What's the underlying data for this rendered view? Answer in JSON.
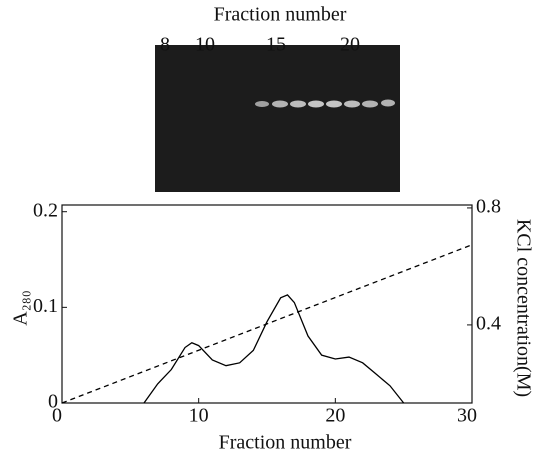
{
  "chart_data": {
    "type": "line",
    "gel_title": "Fraction number",
    "gel_lanes": [
      "8",
      "10",
      "15",
      "20"
    ],
    "xlabel": "Fraction number",
    "ylabel": "A₂₈₀",
    "y2label": "KCl concentration(M)",
    "xlim": [
      0,
      30
    ],
    "xticks": [
      0,
      10,
      20,
      30
    ],
    "ylim": [
      0,
      0.207
    ],
    "yticks": [
      0,
      0.1,
      0.2
    ],
    "y2lim": [
      0.133,
      0.81
    ],
    "y2ticks": [
      0.4,
      0.8
    ],
    "series": [
      {
        "color": "#000000",
        "style": "solid",
        "x": [
          6,
          7,
          8,
          9,
          9.5,
          10,
          11,
          12,
          13,
          14,
          15,
          16,
          16.5,
          17,
          18,
          19,
          20,
          21,
          22,
          23,
          24,
          25
        ],
        "values": [
          0,
          0.02,
          0.035,
          0.058,
          0.063,
          0.06,
          0.045,
          0.039,
          0.042,
          0.055,
          0.085,
          0.11,
          0.113,
          0.105,
          0.07,
          0.05,
          0.046,
          0.048,
          0.042,
          0.03,
          0.018,
          0
        ]
      },
      {
        "color": "#000000",
        "style": "dashed",
        "axis": "y2",
        "x": [
          0,
          30
        ],
        "values": [
          0.133,
          0.674
        ]
      }
    ]
  }
}
